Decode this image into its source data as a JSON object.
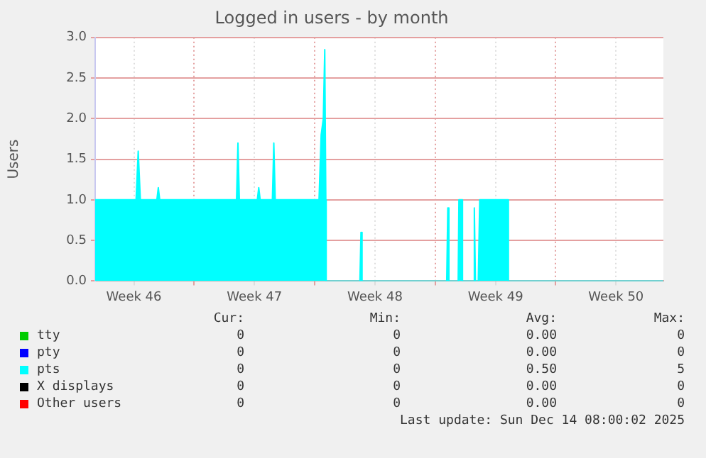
{
  "chart_data": {
    "type": "area",
    "title": "Logged in users - by month",
    "ylabel": "Users",
    "xlim": [
      "2025-11-11T06:00",
      "2025-12-14T06:00"
    ],
    "xticks": [
      {
        "value": "2025-11-13T12:00",
        "label": "Week 46"
      },
      {
        "value": "2025-11-17T00:00",
        "label": null
      },
      {
        "value": "2025-11-20T12:00",
        "label": "Week 47"
      },
      {
        "value": "2025-11-24T00:00",
        "label": null
      },
      {
        "value": "2025-11-27T12:00",
        "label": "Week 48"
      },
      {
        "value": "2025-12-01T00:00",
        "label": null
      },
      {
        "value": "2025-12-04T12:00",
        "label": "Week 49"
      },
      {
        "value": "2025-12-08T00:00",
        "label": null
      },
      {
        "value": "2025-12-11T12:00",
        "label": "Week 50"
      }
    ],
    "ylim": [
      0,
      3
    ],
    "yticks": [
      {
        "value": 0,
        "label": "0.0"
      },
      {
        "value": 0.5,
        "label": "0.5"
      },
      {
        "value": 1,
        "label": "1.0"
      },
      {
        "value": 1.5,
        "label": "1.5"
      },
      {
        "value": 2,
        "label": "2.0"
      },
      {
        "value": 2.5,
        "label": "2.5"
      },
      {
        "value": 3,
        "label": "3.0"
      }
    ],
    "grid": true,
    "legend": "bottom",
    "series": [
      {
        "name": "tty",
        "color": "#00cc00"
      },
      {
        "name": "pty",
        "color": "#0000ff"
      },
      {
        "name": "pts",
        "color": "#00ffff",
        "x": [
          "2025-11-11T06:00",
          "2025-11-13T15:00",
          "2025-11-13T18:00",
          "2025-11-13T21:00",
          "2025-11-14T20:00",
          "2025-11-14T22:00",
          "2025-11-15T00:00",
          "2025-11-19T11:00",
          "2025-11-19T13:00",
          "2025-11-19T15:00",
          "2025-11-20T16:00",
          "2025-11-20T18:00",
          "2025-11-20T20:00",
          "2025-11-21T13:00",
          "2025-11-21T15:00",
          "2025-11-21T17:00",
          "2025-11-24T06:00",
          "2025-11-24T09:00",
          "2025-11-24T12:00",
          "2025-11-24T14:00",
          "2025-11-24T15:30",
          "2025-11-24T16:00",
          "2025-11-26T15:00",
          "2025-11-26T16:30",
          "2025-11-26T18:00",
          "2025-12-01T16:00",
          "2025-12-01T17:30",
          "2025-12-01T19:00",
          "2025-12-02T08:00",
          "2025-12-02T09:00",
          "2025-12-02T13:00",
          "2025-12-02T14:00",
          "2025-12-03T05:00",
          "2025-12-03T06:30",
          "2025-12-03T08:00",
          "2025-12-03T12:00",
          "2025-12-03T14:00",
          "2025-12-05T05:00",
          "2025-12-05T06:00",
          "2025-12-14T06:00"
        ],
        "values": [
          1,
          1,
          1.6,
          1,
          1,
          1.15,
          1,
          1,
          1.7,
          1,
          1,
          1.15,
          1,
          1,
          1.7,
          1,
          1,
          1.8,
          2,
          2.85,
          1,
          0,
          0,
          0.6,
          0,
          0,
          0.9,
          0,
          0,
          1,
          1,
          0,
          0,
          0.9,
          0,
          0,
          1,
          1,
          0,
          0
        ]
      },
      {
        "name": "X displays",
        "color": "#000000"
      },
      {
        "name": "Other users",
        "color": "#ff0000"
      }
    ],
    "annotations": [
      "Cur:",
      "Min:",
      "Avg:",
      "Max:",
      "0",
      "0",
      "0.00",
      "0",
      "0",
      "0",
      "0.00",
      "0",
      "0",
      "0",
      "0.50",
      "5",
      "0",
      "0",
      "0.00",
      "0",
      "0",
      "0",
      "0.00",
      "0",
      "Last update: Sun Dec 14 08:00:02 2025"
    ]
  }
}
